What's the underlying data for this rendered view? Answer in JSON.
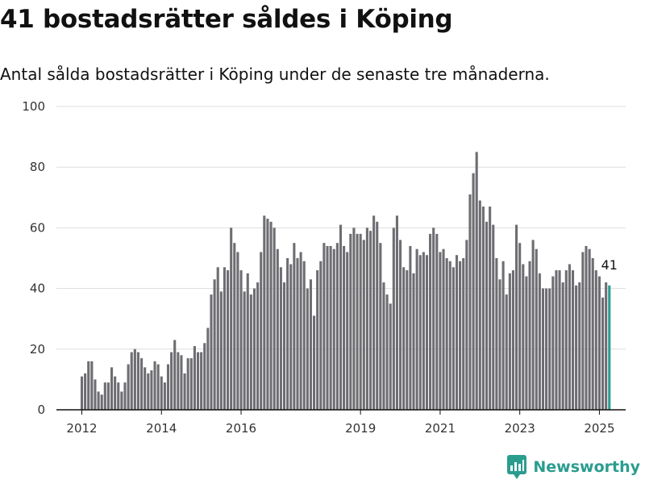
{
  "header": {
    "title": "41 bostadsrätter såldes i Köping",
    "subtitle": "Antal sålda bostadsrätter i Köping under de senaste tre månaderna."
  },
  "brand": {
    "name": "Newsworthy",
    "icon": "newsworthy-logo-icon",
    "color": "#2a9d8f"
  },
  "colors": {
    "bar": "#6e6d72",
    "highlight": "#2a9d8f",
    "grid": "#dddddd",
    "axis": "#111111"
  },
  "chart_data": {
    "type": "bar",
    "title": "41 bostadsrätter såldes i Köping",
    "subtitle": "Antal sålda bostadsrätter i Köping under de senaste tre månaderna.",
    "x_unit": "month",
    "start": "2012-01",
    "end": "2025-01",
    "ylim": [
      0,
      100
    ],
    "yticks": [
      0,
      20,
      40,
      60,
      80,
      100
    ],
    "xticks": [
      "2012",
      "2014",
      "2016",
      "2019",
      "2021",
      "2023",
      "2025"
    ],
    "grid": true,
    "values": [
      11,
      12,
      16,
      16,
      10,
      6,
      5,
      9,
      9,
      14,
      11,
      9,
      6,
      9,
      15,
      19,
      20,
      19,
      17,
      14,
      12,
      13,
      16,
      15,
      11,
      9,
      15,
      19,
      23,
      19,
      18,
      12,
      17,
      17,
      21,
      19,
      19,
      22,
      27,
      38,
      43,
      47,
      39,
      47,
      46,
      60,
      55,
      52,
      46,
      39,
      45,
      38,
      40,
      42,
      52,
      64,
      63,
      62,
      60,
      53,
      47,
      42,
      50,
      48,
      55,
      50,
      52,
      49,
      40,
      43,
      31,
      46,
      49,
      55,
      54,
      54,
      53,
      55,
      61,
      54,
      52,
      58,
      60,
      58,
      58,
      56,
      60,
      59,
      64,
      62,
      55,
      42,
      38,
      35,
      60,
      64,
      56,
      47,
      46,
      54,
      45,
      53,
      51,
      52,
      51,
      58,
      60,
      58,
      52,
      53,
      50,
      49,
      47,
      51,
      49,
      50,
      56,
      71,
      78,
      85,
      69,
      67,
      62,
      67,
      61,
      50,
      43,
      49,
      38,
      45,
      46,
      61,
      55,
      48,
      44,
      49,
      56,
      53,
      45,
      40,
      40,
      40,
      44,
      46,
      46,
      42,
      46,
      48,
      46,
      41,
      42,
      52,
      54,
      53,
      50,
      46,
      44,
      37,
      42,
      41
    ],
    "highlight_last": true,
    "annotation": "41"
  }
}
